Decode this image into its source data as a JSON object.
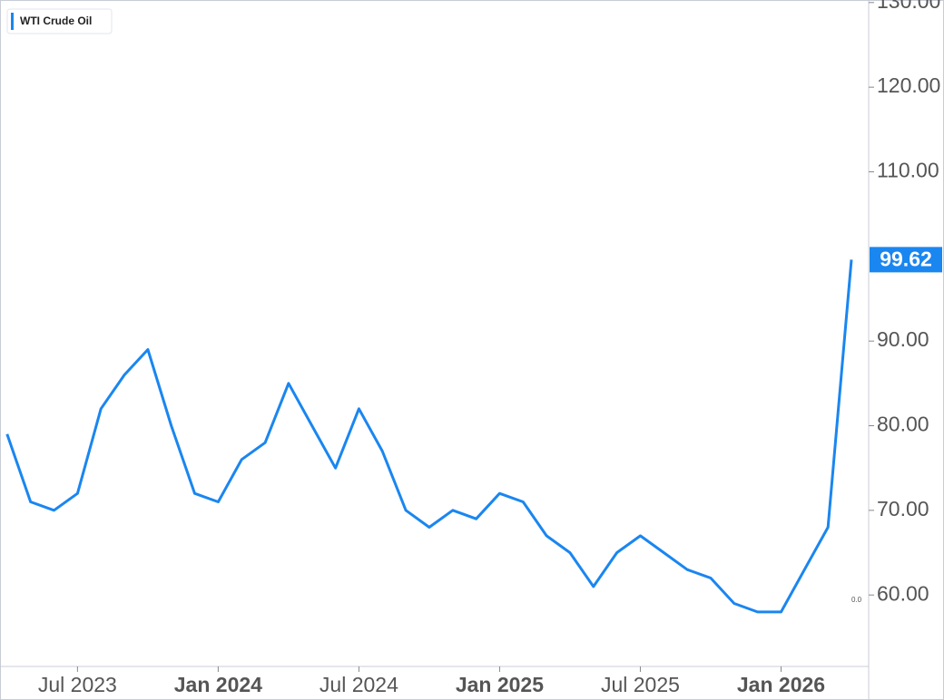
{
  "chart_data": {
    "type": "line",
    "x": [
      "2023-04",
      "2023-05",
      "2023-06",
      "2023-07",
      "2023-08",
      "2023-09",
      "2023-10",
      "2023-11",
      "2023-12",
      "2024-01",
      "2024-02",
      "2024-03",
      "2024-04",
      "2024-05",
      "2024-06",
      "2024-07",
      "2024-08",
      "2024-09",
      "2024-10",
      "2024-11",
      "2024-12",
      "2025-01",
      "2025-02",
      "2025-03",
      "2025-04",
      "2025-05",
      "2025-06",
      "2025-07",
      "2025-08",
      "2025-09",
      "2025-10",
      "2025-11",
      "2025-12",
      "2026-01",
      "2026-02",
      "2026-03",
      "2026-04"
    ],
    "series": [
      {
        "name": "WTI Crude Oil",
        "color": "#1a86f0",
        "values": [
          79,
          71,
          70,
          72,
          82,
          86,
          89,
          80,
          72,
          71,
          76,
          78,
          85,
          80,
          75,
          82,
          77,
          70,
          68,
          70,
          69,
          72,
          71,
          67,
          65,
          61,
          65,
          67,
          65,
          63,
          62,
          59,
          58,
          58,
          63,
          68,
          99.62
        ]
      }
    ],
    "xlim": [
      "2023-03",
      "2026-04"
    ],
    "xticks": [
      {
        "value": "2023-07",
        "label": "Jul 2023"
      },
      {
        "value": "2024-01",
        "label": "Jan 2024"
      },
      {
        "value": "2024-07",
        "label": "Jul 2024"
      },
      {
        "value": "2025-01",
        "label": "Jan 2025"
      },
      {
        "value": "2025-07",
        "label": "Jul 2025"
      },
      {
        "value": "2026-01",
        "label": "Jan 2026"
      }
    ],
    "ylim": [
      47.7,
      130.3
    ],
    "yticks": [
      {
        "value": 60,
        "label": "60.00"
      },
      {
        "value": 70,
        "label": "70.00"
      },
      {
        "value": 80,
        "label": "80.00"
      },
      {
        "value": 90,
        "label": "90.00"
      },
      {
        "value": 110,
        "label": "110.00"
      },
      {
        "value": 120,
        "label": "120.00"
      },
      {
        "value": 130,
        "label": "130.00"
      }
    ],
    "annotation": "0.0",
    "grid": false
  }
}
